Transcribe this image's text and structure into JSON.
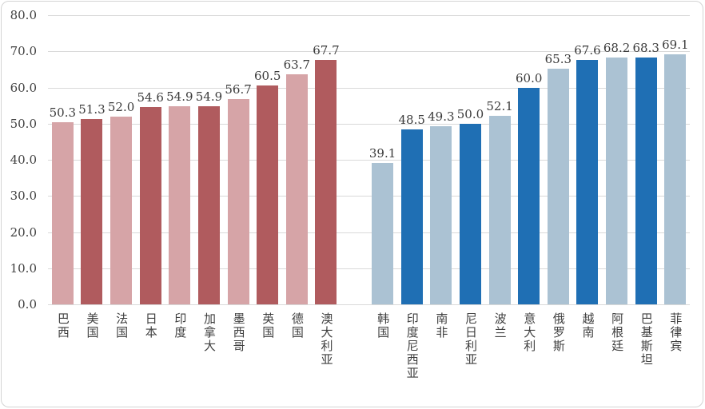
{
  "chart_data": {
    "type": "bar",
    "title": "",
    "ylim": [
      0,
      80
    ],
    "ytick_labels": [
      "80.0",
      "70.0",
      "60.0",
      "50.0",
      "40.0",
      "30.0",
      "20.0",
      "10.0",
      "0.0"
    ],
    "grid": "horizontal",
    "legend": "none",
    "value_labels": "above-bars, one decimal",
    "category_label_orientation": "vertical-upright",
    "groups": [
      {
        "name": "group-red",
        "palette": {
          "light": "#D6A4A7",
          "dark": "#B05B5E"
        },
        "bars": [
          {
            "label": "巴西",
            "value": 50.3,
            "shade": "light"
          },
          {
            "label": "美国",
            "value": 51.3,
            "shade": "dark"
          },
          {
            "label": "法国",
            "value": 52.0,
            "shade": "light"
          },
          {
            "label": "日本",
            "value": 54.6,
            "shade": "dark"
          },
          {
            "label": "印度",
            "value": 54.9,
            "shade": "light"
          },
          {
            "label": "加拿大",
            "value": 54.9,
            "shade": "dark"
          },
          {
            "label": "墨西哥",
            "value": 56.7,
            "shade": "light"
          },
          {
            "label": "英国",
            "value": 60.5,
            "shade": "dark"
          },
          {
            "label": "德国",
            "value": 63.7,
            "shade": "light"
          },
          {
            "label": "澳大利亚",
            "value": 67.7,
            "shade": "dark"
          }
        ]
      },
      {
        "name": "group-blue",
        "palette": {
          "light": "#ABC2D3",
          "dark": "#1F6FB4"
        },
        "bars": [
          {
            "label": "韩国",
            "value": 39.1,
            "shade": "light"
          },
          {
            "label": "印度尼西亚",
            "value": 48.5,
            "shade": "dark"
          },
          {
            "label": "南非",
            "value": 49.3,
            "shade": "light"
          },
          {
            "label": "尼日利亚",
            "value": 50.0,
            "shade": "dark"
          },
          {
            "label": "波兰",
            "value": 52.1,
            "shade": "light"
          },
          {
            "label": "意大利",
            "value": 60.0,
            "shade": "dark"
          },
          {
            "label": "俄罗斯",
            "value": 65.3,
            "shade": "light"
          },
          {
            "label": "越南",
            "value": 67.6,
            "shade": "dark"
          },
          {
            "label": "阿根廷",
            "value": 68.2,
            "shade": "light"
          },
          {
            "label": "巴基斯坦",
            "value": 68.3,
            "shade": "dark"
          },
          {
            "label": "菲律宾",
            "value": 69.1,
            "shade": "light"
          }
        ]
      }
    ]
  }
}
